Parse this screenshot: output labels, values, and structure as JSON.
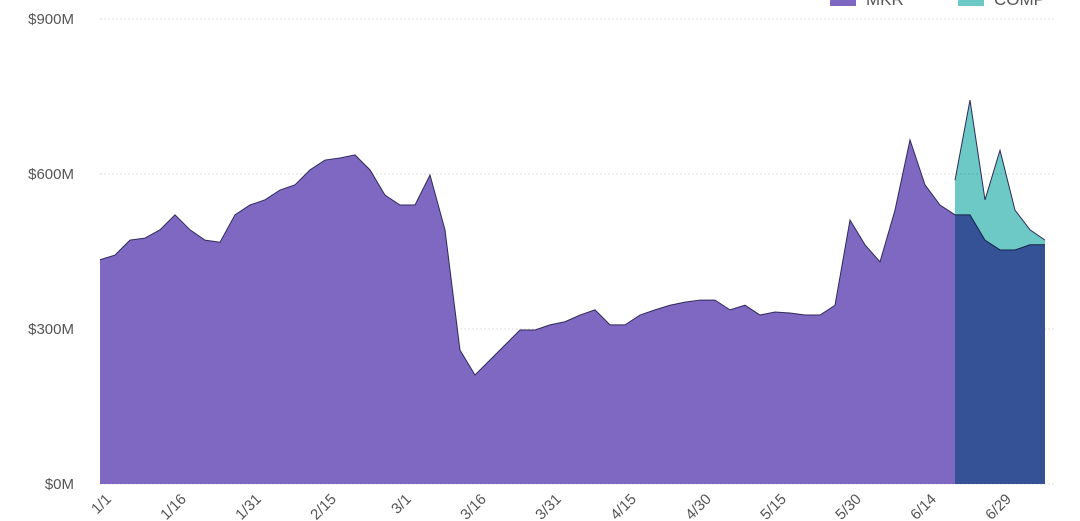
{
  "chart_data": {
    "type": "area",
    "categories": [
      "1/1",
      null,
      null,
      null,
      null,
      "1/16",
      null,
      null,
      null,
      null,
      "1/31",
      null,
      null,
      null,
      null,
      "2/15",
      null,
      null,
      null,
      null,
      "3/1",
      null,
      null,
      null,
      null,
      "3/16",
      null,
      null,
      null,
      null,
      "3/31",
      null,
      null,
      null,
      null,
      "4/15",
      null,
      null,
      null,
      null,
      "4/30",
      null,
      null,
      null,
      null,
      "5/15",
      null,
      null,
      null,
      null,
      "5/30",
      null,
      null,
      null,
      null,
      "6/14",
      null,
      null,
      null,
      null,
      "6/29",
      null,
      null,
      null
    ],
    "series": [
      {
        "name": "MKR",
        "color": "#7f68c2",
        "values": [
          434,
          443,
          472,
          476,
          492,
          521,
          492,
          472,
          468,
          521,
          540,
          550,
          569,
          579,
          608,
          627,
          631,
          637,
          608,
          559,
          540,
          540,
          598,
          492,
          259,
          211,
          240,
          269,
          298,
          298,
          308,
          314,
          327,
          337,
          308,
          308,
          327,
          337,
          346,
          352,
          356,
          356,
          337,
          346,
          327,
          333,
          331,
          327,
          327,
          346,
          511,
          463,
          430,
          530,
          666,
          579,
          540,
          521,
          521,
          472,
          453,
          453,
          463,
          463
        ]
      },
      {
        "name": "COMP",
        "color": "#6cc9c6",
        "values": [
          null,
          null,
          null,
          null,
          null,
          null,
          null,
          null,
          null,
          null,
          null,
          null,
          null,
          null,
          null,
          null,
          null,
          null,
          null,
          null,
          null,
          null,
          null,
          null,
          null,
          null,
          null,
          null,
          null,
          null,
          null,
          null,
          null,
          null,
          null,
          null,
          null,
          null,
          null,
          null,
          null,
          null,
          null,
          null,
          null,
          null,
          null,
          null,
          null,
          null,
          null,
          null,
          null,
          null,
          null,
          null,
          null,
          588,
          743,
          550,
          646,
          530,
          492,
          472
        ]
      }
    ],
    "ylim": [
      0,
      900
    ],
    "yticks": [
      {
        "value": 0,
        "label": "$0M"
      },
      {
        "value": 300,
        "label": "$300M"
      },
      {
        "value": 600,
        "label": "$600M"
      },
      {
        "value": 900,
        "label": "$900M"
      }
    ],
    "grid": true
  }
}
